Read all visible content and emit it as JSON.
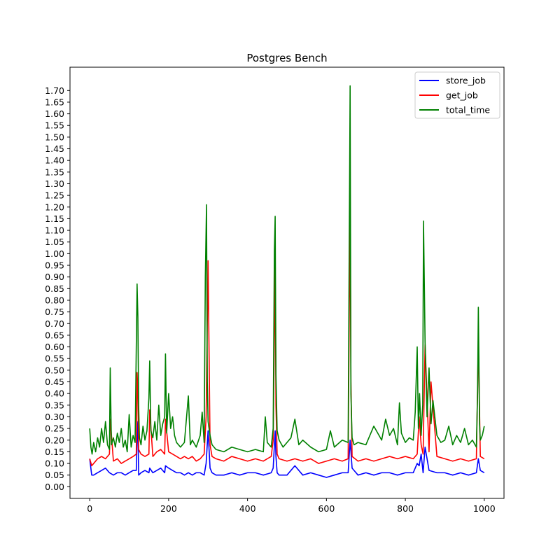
{
  "chart_data": {
    "type": "line",
    "title": "Postgres Bench",
    "xlabel": "",
    "ylabel": "",
    "xlim": [
      -50,
      1050
    ],
    "ylim": [
      -0.05,
      1.8
    ],
    "xticks": [
      0,
      200,
      400,
      600,
      800,
      1000
    ],
    "yticks": [
      0.0,
      0.05,
      0.1,
      0.15,
      0.2,
      0.25,
      0.3,
      0.35,
      0.4,
      0.45,
      0.5,
      0.55,
      0.6,
      0.65,
      0.7,
      0.75,
      0.8,
      0.85,
      0.9,
      0.95,
      1.0,
      1.05,
      1.1,
      1.15,
      1.2,
      1.25,
      1.3,
      1.35,
      1.4,
      1.45,
      1.5,
      1.55,
      1.6,
      1.65,
      1.7
    ],
    "legend_position": "top-right",
    "grid": false,
    "series": [
      {
        "name": "store_job",
        "color": "#0000ff",
        "x": [
          0,
          5,
          10,
          20,
          30,
          40,
          50,
          60,
          70,
          80,
          90,
          100,
          110,
          118,
          120,
          122,
          124,
          130,
          140,
          150,
          152,
          160,
          170,
          180,
          190,
          192,
          200,
          210,
          220,
          230,
          240,
          250,
          260,
          270,
          280,
          290,
          295,
          300,
          305,
          310,
          320,
          340,
          360,
          380,
          400,
          420,
          440,
          460,
          465,
          470,
          472,
          475,
          480,
          500,
          520,
          540,
          560,
          580,
          600,
          620,
          640,
          655,
          660,
          665,
          680,
          700,
          720,
          740,
          760,
          780,
          800,
          820,
          830,
          835,
          840,
          845,
          850,
          860,
          880,
          900,
          920,
          940,
          960,
          980,
          985,
          990,
          1000
        ],
        "y": [
          0.12,
          0.05,
          0.05,
          0.06,
          0.07,
          0.08,
          0.06,
          0.05,
          0.06,
          0.06,
          0.05,
          0.06,
          0.07,
          0.07,
          0.21,
          0.28,
          0.05,
          0.06,
          0.07,
          0.06,
          0.08,
          0.06,
          0.07,
          0.08,
          0.06,
          0.09,
          0.08,
          0.07,
          0.06,
          0.06,
          0.05,
          0.06,
          0.05,
          0.06,
          0.06,
          0.05,
          0.1,
          0.24,
          0.08,
          0.06,
          0.05,
          0.05,
          0.06,
          0.05,
          0.06,
          0.06,
          0.05,
          0.06,
          0.08,
          0.24,
          0.13,
          0.06,
          0.05,
          0.05,
          0.09,
          0.05,
          0.06,
          0.05,
          0.04,
          0.05,
          0.06,
          0.06,
          0.2,
          0.08,
          0.05,
          0.06,
          0.05,
          0.06,
          0.06,
          0.05,
          0.06,
          0.06,
          0.1,
          0.09,
          0.14,
          0.06,
          0.17,
          0.07,
          0.06,
          0.06,
          0.05,
          0.06,
          0.05,
          0.06,
          0.12,
          0.07,
          0.06
        ]
      },
      {
        "name": "get_job",
        "color": "#ff0000",
        "x": [
          0,
          5,
          10,
          20,
          30,
          40,
          50,
          52,
          60,
          70,
          80,
          90,
          100,
          110,
          118,
          120,
          122,
          124,
          130,
          140,
          150,
          152,
          160,
          170,
          180,
          190,
          192,
          200,
          210,
          220,
          230,
          240,
          250,
          260,
          270,
          280,
          290,
          295,
          300,
          305,
          310,
          320,
          340,
          360,
          380,
          400,
          420,
          440,
          460,
          465,
          470,
          472,
          475,
          480,
          500,
          520,
          540,
          560,
          580,
          600,
          620,
          640,
          655,
          660,
          662,
          665,
          680,
          700,
          720,
          740,
          760,
          780,
          800,
          820,
          830,
          835,
          840,
          845,
          850,
          860,
          865,
          880,
          900,
          920,
          940,
          960,
          980,
          985,
          990,
          1000
        ],
        "y": [
          0.12,
          0.09,
          0.1,
          0.12,
          0.13,
          0.12,
          0.14,
          0.29,
          0.11,
          0.12,
          0.1,
          0.11,
          0.12,
          0.13,
          0.14,
          0.49,
          0.41,
          0.16,
          0.14,
          0.13,
          0.14,
          0.33,
          0.13,
          0.15,
          0.16,
          0.14,
          0.29,
          0.15,
          0.14,
          0.13,
          0.12,
          0.13,
          0.12,
          0.13,
          0.11,
          0.12,
          0.14,
          0.3,
          0.97,
          0.18,
          0.13,
          0.12,
          0.11,
          0.13,
          0.12,
          0.11,
          0.12,
          0.11,
          0.13,
          0.2,
          0.95,
          0.35,
          0.14,
          0.12,
          0.11,
          0.12,
          0.11,
          0.12,
          0.1,
          0.11,
          0.12,
          0.11,
          0.12,
          1.21,
          0.45,
          0.13,
          0.11,
          0.12,
          0.11,
          0.12,
          0.13,
          0.12,
          0.13,
          0.12,
          0.14,
          0.3,
          0.18,
          0.14,
          0.61,
          0.15,
          0.45,
          0.13,
          0.12,
          0.11,
          0.12,
          0.11,
          0.12,
          0.63,
          0.13,
          0.12
        ]
      },
      {
        "name": "total_time",
        "color": "#008000",
        "x": [
          0,
          3,
          6,
          10,
          15,
          20,
          25,
          30,
          35,
          40,
          45,
          50,
          52,
          55,
          60,
          65,
          70,
          75,
          80,
          85,
          90,
          95,
          100,
          105,
          110,
          115,
          120,
          122,
          124,
          126,
          130,
          135,
          140,
          145,
          150,
          152,
          155,
          160,
          165,
          170,
          175,
          180,
          185,
          190,
          192,
          195,
          200,
          205,
          210,
          215,
          220,
          230,
          240,
          250,
          255,
          260,
          270,
          280,
          285,
          290,
          293,
          296,
          298,
          300,
          305,
          310,
          320,
          340,
          360,
          380,
          400,
          420,
          440,
          445,
          450,
          460,
          465,
          468,
          470,
          472,
          475,
          480,
          490,
          500,
          510,
          520,
          530,
          540,
          560,
          580,
          600,
          610,
          620,
          640,
          655,
          660,
          662,
          665,
          670,
          680,
          700,
          720,
          740,
          750,
          760,
          770,
          780,
          785,
          790,
          800,
          810,
          820,
          825,
          830,
          833,
          836,
          840,
          844,
          846,
          850,
          855,
          860,
          865,
          870,
          880,
          890,
          900,
          910,
          920,
          930,
          940,
          950,
          960,
          970,
          980,
          983,
          985,
          988,
          990,
          995,
          1000
        ],
        "y": [
          0.25,
          0.17,
          0.14,
          0.19,
          0.15,
          0.21,
          0.17,
          0.25,
          0.19,
          0.28,
          0.18,
          0.16,
          0.51,
          0.18,
          0.21,
          0.17,
          0.23,
          0.19,
          0.25,
          0.17,
          0.2,
          0.15,
          0.31,
          0.17,
          0.22,
          0.19,
          0.87,
          0.73,
          0.35,
          0.21,
          0.18,
          0.26,
          0.2,
          0.24,
          0.38,
          0.54,
          0.24,
          0.21,
          0.28,
          0.2,
          0.35,
          0.22,
          0.27,
          0.3,
          0.57,
          0.23,
          0.4,
          0.25,
          0.3,
          0.22,
          0.19,
          0.17,
          0.19,
          0.39,
          0.18,
          0.2,
          0.17,
          0.22,
          0.32,
          0.19,
          0.9,
          1.21,
          0.45,
          0.28,
          0.22,
          0.18,
          0.16,
          0.15,
          0.17,
          0.16,
          0.15,
          0.16,
          0.15,
          0.3,
          0.19,
          0.17,
          0.25,
          1.01,
          1.16,
          0.48,
          0.24,
          0.2,
          0.17,
          0.19,
          0.21,
          0.29,
          0.18,
          0.2,
          0.17,
          0.15,
          0.16,
          0.24,
          0.17,
          0.2,
          0.19,
          1.72,
          0.4,
          0.21,
          0.18,
          0.19,
          0.18,
          0.26,
          0.2,
          0.29,
          0.22,
          0.25,
          0.18,
          0.36,
          0.23,
          0.19,
          0.21,
          0.2,
          0.32,
          0.6,
          0.25,
          0.4,
          0.22,
          0.35,
          1.14,
          0.62,
          0.3,
          0.51,
          0.27,
          0.37,
          0.22,
          0.19,
          0.2,
          0.26,
          0.18,
          0.22,
          0.19,
          0.25,
          0.18,
          0.2,
          0.17,
          0.4,
          0.77,
          0.27,
          0.2,
          0.22,
          0.26
        ]
      }
    ]
  }
}
